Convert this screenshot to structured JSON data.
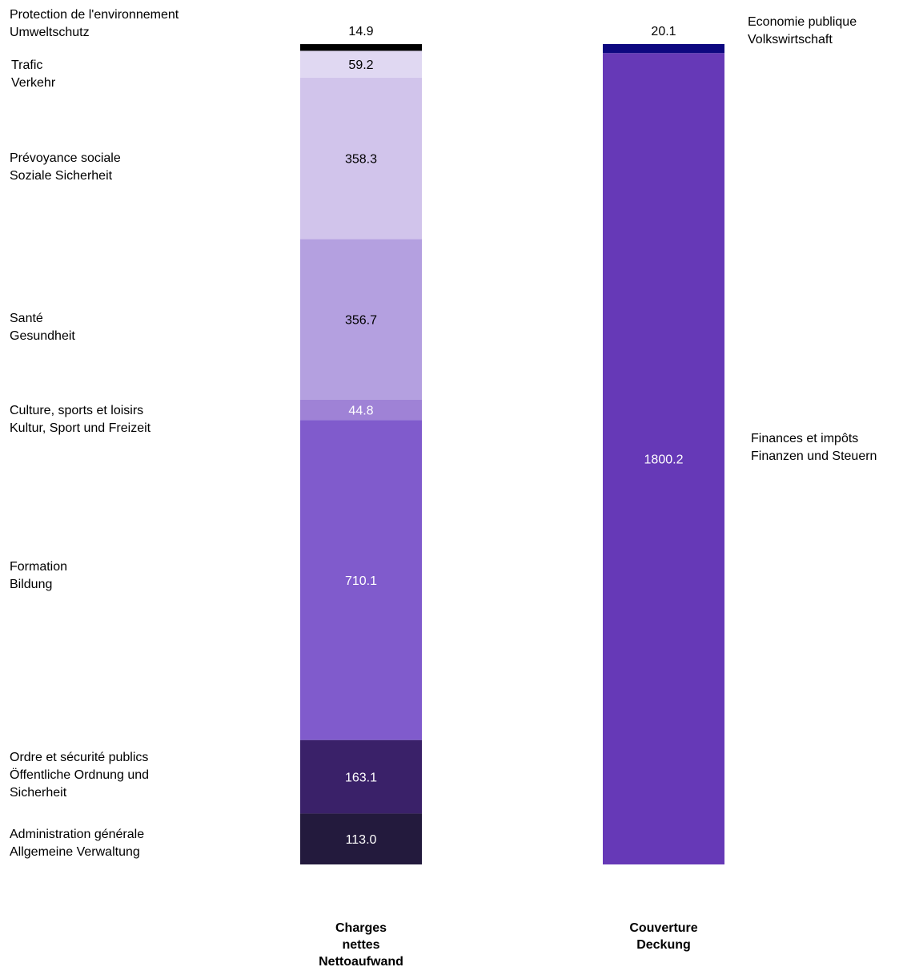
{
  "chart_data": {
    "type": "bar",
    "stacked": true,
    "categories": [
      "Charges nettes Nettoaufwand",
      "Couverture Deckung"
    ],
    "columns": [
      {
        "label": [
          "Charges",
          "nettes",
          "Nettoaufwand"
        ],
        "segments": [
          {
            "value": 113.0,
            "label": "113.0",
            "name": [
              "Administration générale",
              "Allgemeine Verwaltung"
            ],
            "color": "#231a3d"
          },
          {
            "value": 163.1,
            "label": "163.1",
            "name": [
              "Ordre et sécurité publics",
              "Öffentliche Ordnung  und",
              "Sicherheit"
            ],
            "color": "#3a2169"
          },
          {
            "value": 710.1,
            "label": "710.1",
            "name": [
              "Formation",
              "Bildung"
            ],
            "color": "#805bcc"
          },
          {
            "value": 44.8,
            "label": "44.8",
            "name": [
              "Culture, sports et loisirs",
              "Kultur, Sport und Freizeit"
            ],
            "color": "#9f82d6"
          },
          {
            "value": 356.7,
            "label": "356.7",
            "name": [
              "Santé",
              "Gesundheit"
            ],
            "color": "#b4a0e0"
          },
          {
            "value": 358.3,
            "label": "358.3",
            "name": [
              "Prévoyance sociale",
              "Soziale Sicherheit"
            ],
            "color": "#d1c4eb"
          },
          {
            "value": 59.2,
            "label": "59.2",
            "name": [
              "Trafic",
              "Verkehr"
            ],
            "color": "#e0d8f2"
          },
          {
            "value": 14.9,
            "label": "14.9",
            "name": [
              "Protection de l'environnement",
              "Umweltschutz"
            ],
            "color": "#000000"
          }
        ]
      },
      {
        "label": [
          "Couverture",
          "Deckung"
        ],
        "segments": [
          {
            "value": 1800.2,
            "label": "1800.2",
            "name": [
              "Finances et impôts",
              "Finanzen und Steuern"
            ],
            "color": "#6639b7"
          },
          {
            "value": 20.1,
            "label": "20.1",
            "name": [
              "Economie publique",
              "Volkswirtschaft"
            ],
            "color": "#0d0880"
          }
        ]
      }
    ]
  }
}
